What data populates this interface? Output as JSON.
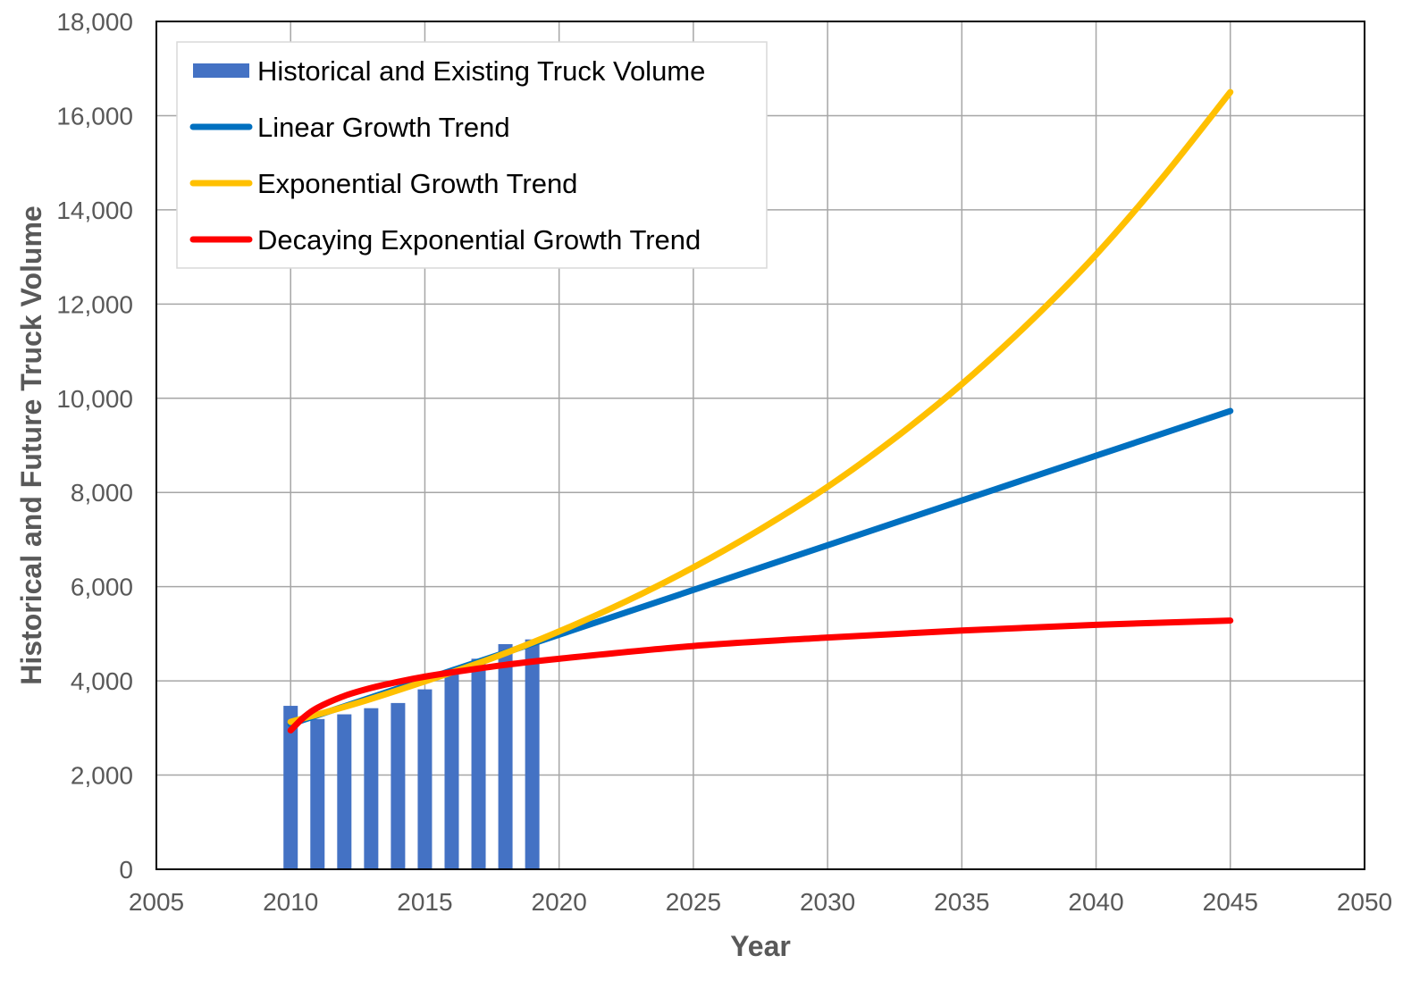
{
  "chart_data": {
    "type": "bar+line",
    "xlabel": "Year",
    "ylabel": "Historical and Future Truck Volume",
    "xlim": [
      2005,
      2050
    ],
    "ylim": [
      0,
      18000
    ],
    "x_ticks": [
      "2005",
      "2010",
      "2015",
      "2020",
      "2025",
      "2030",
      "2035",
      "2040",
      "2045",
      "2050"
    ],
    "y_ticks": [
      "0",
      "2,000",
      "4,000",
      "6,000",
      "8,000",
      "10,000",
      "12,000",
      "14,000",
      "16,000",
      "18,000"
    ],
    "grid": true,
    "legend_position": "top-left",
    "bar_series": {
      "name": "Historical and Existing Truck Volume",
      "color": "#4472C4",
      "x": [
        2010,
        2011,
        2012,
        2013,
        2014,
        2015,
        2016,
        2017,
        2018,
        2019
      ],
      "values": [
        3470,
        3190,
        3290,
        3420,
        3530,
        3820,
        4170,
        4470,
        4780,
        4880
      ]
    },
    "line_series": [
      {
        "name": "Linear Growth Trend",
        "color": "#0070C0",
        "x": [
          2010,
          2015,
          2020,
          2025,
          2030,
          2035,
          2040,
          2045
        ],
        "values": [
          3080,
          4030,
          4980,
          5930,
          6880,
          7830,
          8780,
          9730
        ]
      },
      {
        "name": "Exponential Growth Trend",
        "color": "#FFC000",
        "x": [
          2010,
          2012.5,
          2015,
          2017.5,
          2020,
          2022.5,
          2025,
          2027.5,
          2030,
          2032.5,
          2035,
          2037.5,
          2040,
          2042.5,
          2045
        ],
        "values": [
          3130,
          3530,
          3990,
          4480,
          5050,
          5690,
          6410,
          7220,
          8120,
          9150,
          10300,
          11600,
          13050,
          14700,
          16500
        ]
      },
      {
        "name": "Decaying Exponential Growth Trend",
        "color": "#FF0000",
        "x": [
          2010,
          2010.5,
          2011,
          2012,
          2013,
          2014,
          2015,
          2016,
          2018,
          2020,
          2025,
          2030,
          2035,
          2040,
          2045
        ],
        "values": [
          2950,
          3230,
          3430,
          3680,
          3850,
          3980,
          4090,
          4180,
          4340,
          4470,
          4740,
          4920,
          5070,
          5190,
          5280
        ]
      }
    ]
  }
}
